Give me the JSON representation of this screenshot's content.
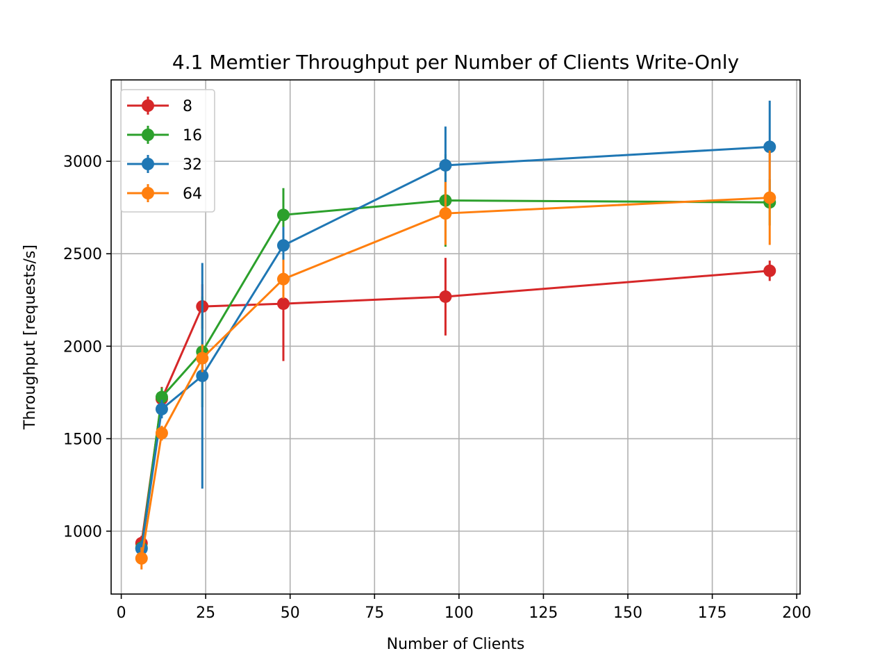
{
  "chart_data": {
    "type": "line",
    "title": "4.1 Memtier Throughput per Number of Clients Write-Only",
    "xlabel": "Number of Clients",
    "ylabel": "Throughput [requests/s]",
    "xlim": [
      -3,
      201
    ],
    "ylim": [
      660,
      3440
    ],
    "x_ticks": [
      0,
      25,
      50,
      75,
      100,
      125,
      150,
      175,
      200
    ],
    "y_ticks": [
      1000,
      1500,
      2000,
      2500,
      3000
    ],
    "grid": true,
    "legend_position": "top-left",
    "x": [
      6,
      12,
      24,
      48,
      96,
      192
    ],
    "series": [
      {
        "name": "8",
        "color": "#d62728",
        "values": [
          935,
          1715,
          2215,
          2230,
          2268,
          2408
        ],
        "errors": [
          40,
          65,
          120,
          310,
          210,
          55
        ]
      },
      {
        "name": "16",
        "color": "#2ca02c",
        "values": [
          910,
          1725,
          1970,
          2710,
          2788,
          2778
        ],
        "errors": [
          40,
          50,
          300,
          145,
          250,
          125
        ]
      },
      {
        "name": "32",
        "color": "#1f77b4",
        "values": [
          905,
          1660,
          1840,
          2545,
          2978,
          3078
        ],
        "errors": [
          40,
          50,
          610,
          100,
          210,
          250
        ]
      },
      {
        "name": "64",
        "color": "#ff7f0e",
        "values": [
          853,
          1530,
          1935,
          2363,
          2718,
          2803
        ],
        "errors": [
          60,
          40,
          75,
          105,
          170,
          255
        ]
      }
    ]
  }
}
